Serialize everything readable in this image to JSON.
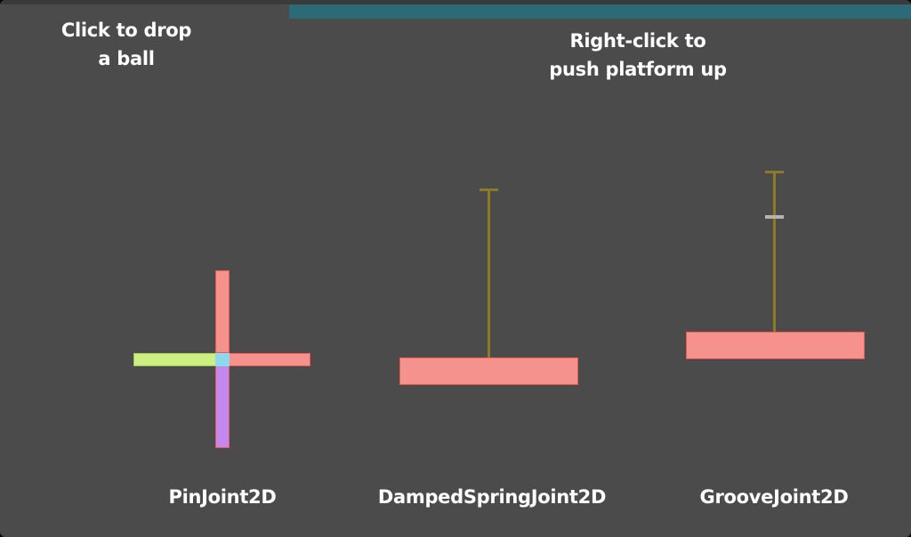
{
  "instructions": {
    "drop_ball_line1": "Click to drop",
    "drop_ball_line2": "a ball",
    "push_platform_line1": "Right-click to",
    "push_platform_line2": "push platform up"
  },
  "demos": {
    "pin_joint_label": "PinJoint2D",
    "damped_spring_label": "DampedSpringJoint2D",
    "groove_joint_label": "GrooveJoint2D"
  },
  "colors": {
    "background": "#4b4b4b",
    "top_bar": "#2b6b78",
    "platform": "#f5928d",
    "platform_border": "#e85a4f",
    "arm_left": "#cdee80",
    "arm_down": "#c387f0",
    "pin_center": "#8fd8ec",
    "joint_line": "#8b7a26",
    "groove_slider": "#b9b0b0"
  }
}
